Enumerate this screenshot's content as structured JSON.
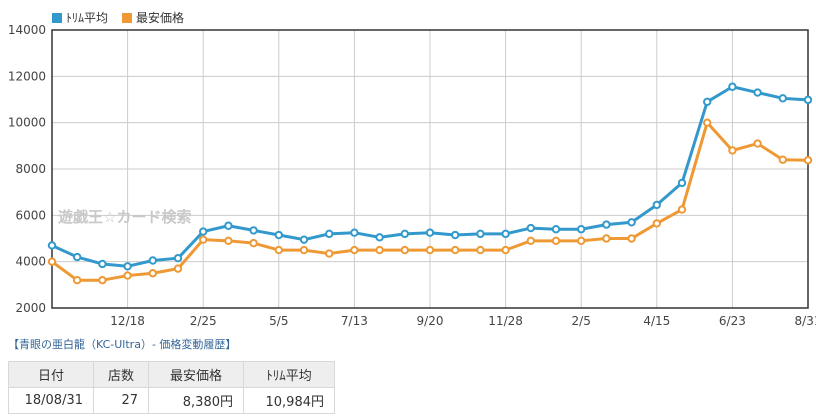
{
  "chart_data": {
    "type": "line",
    "x_ticks": [
      "12/18",
      "2/25",
      "5/5",
      "7/13",
      "9/20",
      "11/28",
      "2/5",
      "4/15",
      "6/23",
      "8/31"
    ],
    "y_ticks": [
      "2000",
      "4000",
      "6000",
      "8000",
      "10000",
      "12000",
      "14000"
    ],
    "ylim": [
      2000,
      14000
    ],
    "grid": true,
    "legend_position": "top-left",
    "series": [
      {
        "name": "ﾄﾘﾑ平均",
        "color": "#3399cc",
        "values": [
          4700,
          4200,
          3900,
          3800,
          4050,
          4150,
          5300,
          5550,
          5350,
          5150,
          4950,
          5200,
          5250,
          5050,
          5200,
          5250,
          5150,
          5200,
          5200,
          5450,
          5400,
          5400,
          5600,
          5700,
          6450,
          7400,
          10900,
          11550,
          11300,
          11050,
          10984
        ]
      },
      {
        "name": "最安価格",
        "color": "#ee9933",
        "values": [
          4000,
          3200,
          3200,
          3400,
          3500,
          3700,
          4950,
          4900,
          4800,
          4500,
          4500,
          4350,
          4500,
          4500,
          4500,
          4500,
          4500,
          4500,
          4500,
          4900,
          4900,
          4900,
          5000,
          5000,
          5650,
          6250,
          10000,
          8800,
          9100,
          8400,
          8380
        ]
      }
    ]
  },
  "watermark": "遊戯王☆カード検索",
  "caption": "【青眼の亜白龍（KC-Ultra）- 価格変動履歴】",
  "table": {
    "headers": [
      "日付",
      "店数",
      "最安価格",
      "ﾄﾘﾑ平均"
    ],
    "row": [
      "18/08/31",
      "27",
      "8,380円",
      "10,984円"
    ]
  }
}
